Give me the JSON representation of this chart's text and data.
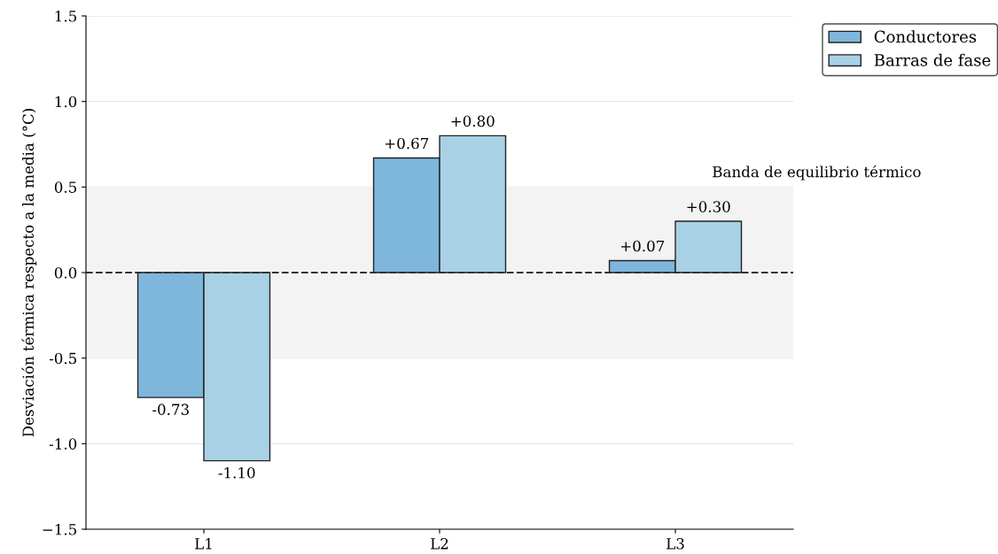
{
  "chart_data": {
    "type": "bar",
    "ylabel": "Desviación térmica respecto a la media (°C)",
    "categories": [
      "L1",
      "L2",
      "L3"
    ],
    "series": [
      {
        "name": "Conductores",
        "color": "#7fb6dc",
        "values": [
          -0.73,
          0.67,
          0.07
        ],
        "value_labels": [
          "-0.73",
          "+0.67",
          "+0.07"
        ]
      },
      {
        "name": "Barras de fase",
        "color": "#a9d1e6",
        "values": [
          -1.1,
          0.8,
          0.3
        ],
        "value_labels": [
          "-1.10",
          "+0.80",
          "+0.30"
        ]
      }
    ],
    "ylim": [
      -1.5,
      1.5
    ],
    "yticks": [
      {
        "value": -1.5,
        "label": "−1.5"
      },
      {
        "value": -1,
        "label": "-1.0"
      },
      -0.5,
      {
        "value": 0,
        "label": "0.0"
      },
      0.5,
      {
        "value": 1,
        "label": "1.0"
      },
      1.5
    ],
    "ref_lines": [
      {
        "axis": "y",
        "value": 0,
        "color": "#333333",
        "line_style": "dashed"
      }
    ],
    "bands": [
      {
        "axis": "y",
        "from": -0.5,
        "to": 0.5,
        "label": "Banda de equilibrio térmico",
        "color": "#f3f3f3"
      }
    ],
    "grid": "y",
    "legend": "top right"
  }
}
